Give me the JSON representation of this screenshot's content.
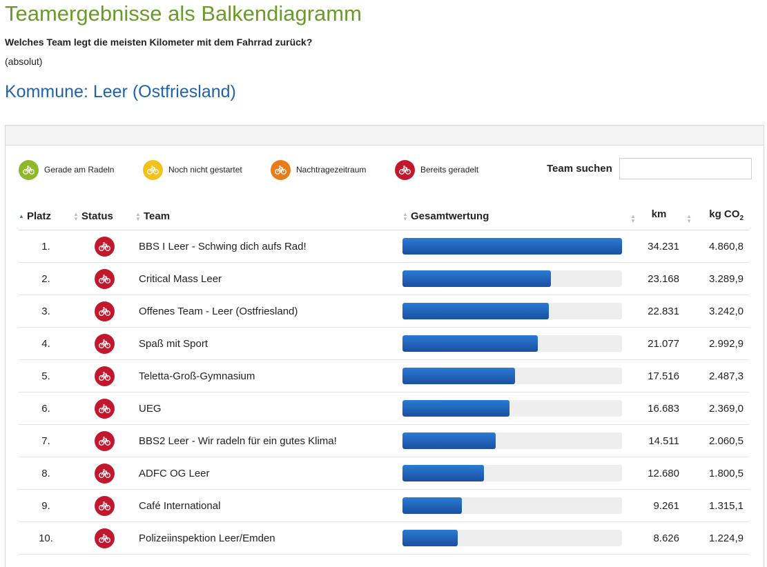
{
  "title": "Teamergebnisse als Balkendiagramm",
  "question": "Welches Team legt die meisten Kilometer mit dem Fahrrad zurück?",
  "mode": "(absolut)",
  "commune": "Kommune: Leer (Ostfriesland)",
  "legend": [
    {
      "label": "Gerade am Radeln",
      "color": "#8cb82a",
      "icon": "bicycle-icon"
    },
    {
      "label": "Noch nicht gestartet",
      "color": "#f2c21a",
      "icon": "bicycle-icon"
    },
    {
      "label": "Nachtragezeitraum",
      "color": "#e87c1a",
      "icon": "bicycle-icon"
    },
    {
      "label": "Bereits geradelt",
      "color": "#c2182e",
      "icon": "bicycle-icon"
    }
  ],
  "search": {
    "label": "Team suchen",
    "value": "",
    "placeholder": ""
  },
  "columns": {
    "rank": "Platz",
    "status": "Status",
    "team": "Team",
    "score": "Gesamtwertung",
    "km": "km",
    "co2": "kg CO",
    "co2_sub": "2"
  },
  "bar_max": 34231,
  "rows": [
    {
      "rank": "1.",
      "team": "BBS I Leer - Schwing dich aufs Rad!",
      "km": "34.231",
      "km_value": 34231,
      "co2": "4.860,8"
    },
    {
      "rank": "2.",
      "team": "Critical Mass Leer",
      "km": "23.168",
      "km_value": 23168,
      "co2": "3.289,9"
    },
    {
      "rank": "3.",
      "team": "Offenes Team - Leer (Ostfriesland)",
      "km": "22.831",
      "km_value": 22831,
      "co2": "3.242,0"
    },
    {
      "rank": "4.",
      "team": "Spaß mit Sport",
      "km": "21.077",
      "km_value": 21077,
      "co2": "2.992,9"
    },
    {
      "rank": "5.",
      "team": "Teletta-Groß-Gymnasium",
      "km": "17.516",
      "km_value": 17516,
      "co2": "2.487,3"
    },
    {
      "rank": "6.",
      "team": "UEG",
      "km": "16.683",
      "km_value": 16683,
      "co2": "2.369,0"
    },
    {
      "rank": "7.",
      "team": "BBS2 Leer - Wir radeln für ein gutes Klima!",
      "km": "14.511",
      "km_value": 14511,
      "co2": "2.060,5"
    },
    {
      "rank": "8.",
      "team": "ADFC OG Leer",
      "km": "12.680",
      "km_value": 12680,
      "co2": "1.800,5"
    },
    {
      "rank": "9.",
      "team": "Café International",
      "km": "9.261",
      "km_value": 9261,
      "co2": "1.315,1"
    },
    {
      "rank": "10.",
      "team": "Polizeiinspektion Leer/Emden",
      "km": "8.626",
      "km_value": 8626,
      "co2": "1.224,9"
    }
  ]
}
